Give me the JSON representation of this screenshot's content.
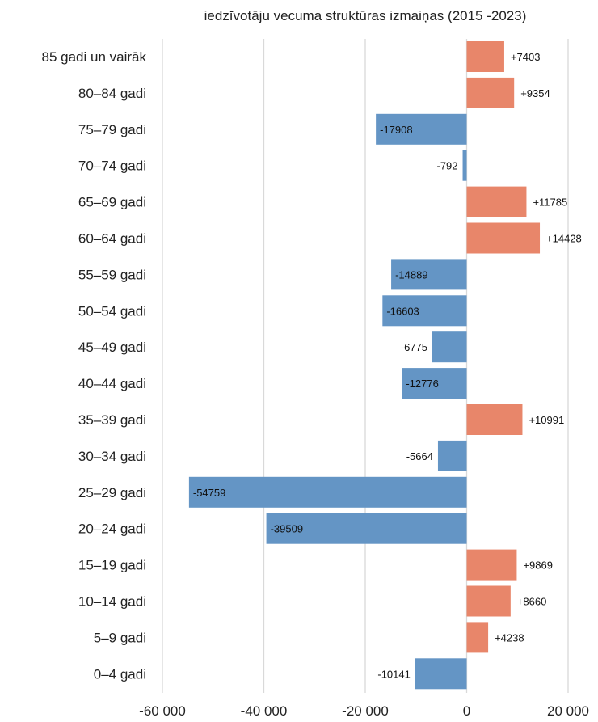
{
  "chart_data": {
    "type": "bar",
    "orientation": "horizontal",
    "title": "iedzīvotāju vecuma struktūras izmaiņas (2015 -2023)",
    "xlabel": "",
    "ylabel": "",
    "xlim": [
      -60000,
      20000
    ],
    "xticks": [
      -60000,
      -40000,
      -20000,
      0,
      20000
    ],
    "xtick_labels": [
      "-60 000",
      "-40 000",
      "-20 000",
      "0",
      "20 000"
    ],
    "grid": true,
    "legend": "none",
    "colors": {
      "positive": "#E8866A",
      "negative": "#6495C5"
    },
    "categories": [
      "85 gadi un vairāk",
      "80–84 gadi",
      "75–79 gadi",
      "70–74 gadi",
      "65–69 gadi",
      "60–64 gadi",
      "55–59 gadi",
      "50–54 gadi",
      "45–49 gadi",
      "40–44 gadi",
      "35–39 gadi",
      "30–34 gadi",
      "25–29 gadi",
      "20–24 gadi",
      "15–19 gadi",
      "10–14 gadi",
      "5–9 gadi",
      "0–4 gadi"
    ],
    "values": [
      7403,
      9354,
      -17908,
      -792,
      11785,
      14428,
      -14889,
      -16603,
      -6775,
      -12776,
      10991,
      -5664,
      -54759,
      -39509,
      9869,
      8660,
      4238,
      -10141
    ],
    "data_labels": [
      "+7403",
      "+9354",
      "-17908",
      "-792",
      "+11785",
      "+14428",
      "-14889",
      "-16603",
      "-6775",
      "-12776",
      "+10991",
      "-5664",
      "-54759",
      "-39509",
      "+9869",
      "+8660",
      "+4238",
      "-10141"
    ]
  }
}
